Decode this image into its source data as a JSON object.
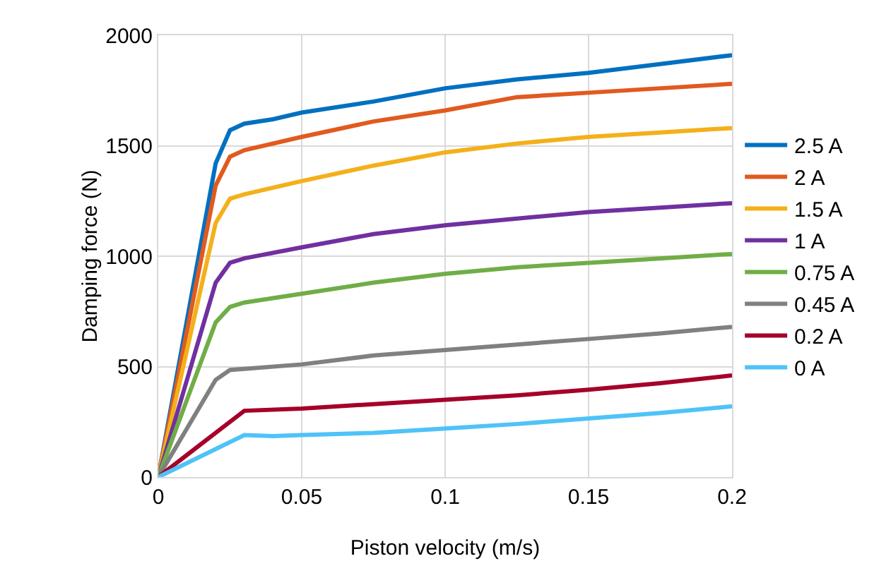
{
  "chart_data": {
    "type": "line",
    "xlabel": "Piston velocity (m/s)",
    "ylabel": "Damping force (N)",
    "xlim": [
      0,
      0.2
    ],
    "xticks": [
      0,
      0.05,
      0.1,
      0.15,
      0.2
    ],
    "ylim": [
      0,
      2000
    ],
    "yticks": [
      0,
      500,
      1000,
      1500,
      2000
    ],
    "grid": true,
    "legend": "right",
    "marker": "none",
    "line_style": "solid",
    "series": [
      {
        "name": "2.5 A",
        "color": "#0070c0",
        "x": [
          0,
          0.02,
          0.025,
          0.03,
          0.04,
          0.05,
          0.075,
          0.1,
          0.125,
          0.15,
          0.175,
          0.2
        ],
        "values": [
          0,
          1420,
          1570,
          1600,
          1620,
          1650,
          1700,
          1760,
          1800,
          1830,
          1870,
          1910
        ]
      },
      {
        "name": "2 A",
        "color": "#e15a1f",
        "x": [
          0,
          0.02,
          0.025,
          0.03,
          0.05,
          0.075,
          0.1,
          0.125,
          0.15,
          0.175,
          0.2
        ],
        "values": [
          0,
          1320,
          1450,
          1480,
          1540,
          1610,
          1660,
          1720,
          1740,
          1760,
          1780
        ]
      },
      {
        "name": "1.5 A",
        "color": "#f4b01b",
        "x": [
          0,
          0.02,
          0.025,
          0.03,
          0.05,
          0.075,
          0.1,
          0.125,
          0.15,
          0.175,
          0.2
        ],
        "values": [
          0,
          1150,
          1260,
          1280,
          1340,
          1410,
          1470,
          1510,
          1540,
          1560,
          1580
        ]
      },
      {
        "name": "1 A",
        "color": "#7030a0",
        "x": [
          0,
          0.02,
          0.025,
          0.03,
          0.05,
          0.075,
          0.1,
          0.125,
          0.15,
          0.175,
          0.2
        ],
        "values": [
          0,
          880,
          970,
          990,
          1040,
          1100,
          1140,
          1170,
          1200,
          1220,
          1240
        ]
      },
      {
        "name": "0.75 A",
        "color": "#70ad47",
        "x": [
          0,
          0.02,
          0.025,
          0.03,
          0.05,
          0.075,
          0.1,
          0.125,
          0.15,
          0.175,
          0.2
        ],
        "values": [
          0,
          700,
          770,
          790,
          830,
          880,
          920,
          950,
          970,
          990,
          1010
        ]
      },
      {
        "name": "0.45 A",
        "color": "#808080",
        "x": [
          0,
          0.02,
          0.025,
          0.03,
          0.05,
          0.075,
          0.1,
          0.125,
          0.15,
          0.175,
          0.2
        ],
        "values": [
          0,
          440,
          485,
          490,
          510,
          550,
          575,
          600,
          625,
          650,
          680
        ]
      },
      {
        "name": "0.2 A",
        "color": "#a5002a",
        "x": [
          0,
          0.02,
          0.03,
          0.05,
          0.075,
          0.1,
          0.125,
          0.15,
          0.175,
          0.2
        ],
        "values": [
          0,
          200,
          300,
          310,
          330,
          350,
          370,
          395,
          425,
          460
        ]
      },
      {
        "name": "0 A",
        "color": "#4fc3f7",
        "x": [
          0,
          0.03,
          0.04,
          0.05,
          0.075,
          0.1,
          0.125,
          0.15,
          0.175,
          0.2
        ],
        "values": [
          0,
          190,
          185,
          190,
          200,
          220,
          240,
          265,
          290,
          320
        ]
      }
    ]
  }
}
